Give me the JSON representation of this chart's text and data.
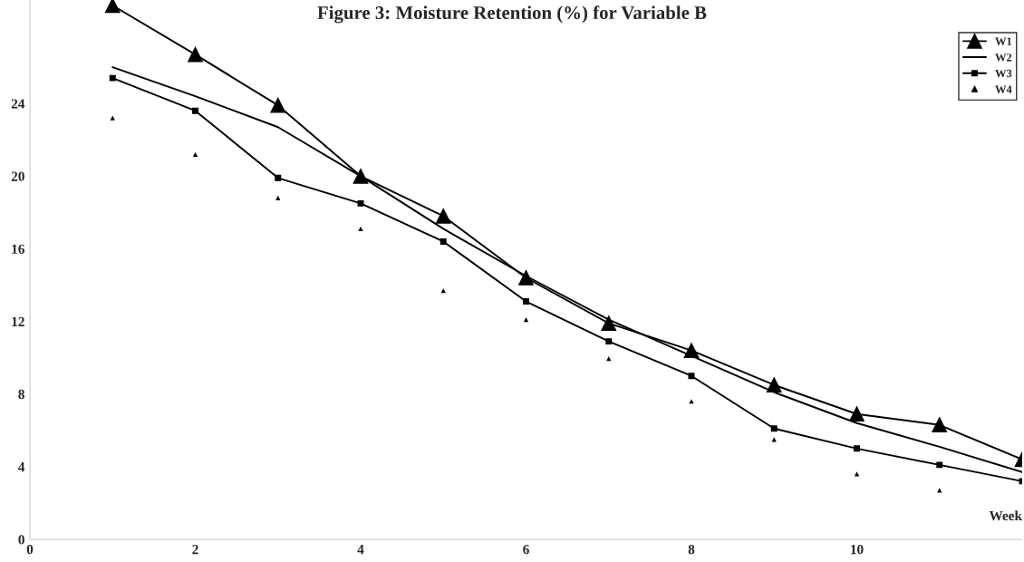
{
  "chart_data": {
    "type": "line",
    "title": "Figure 3: Moisture Retention (%) for Variable B",
    "xlabel": "Week",
    "x": [
      1,
      2,
      3,
      4,
      5,
      6,
      7,
      8,
      9,
      10,
      11,
      12
    ],
    "series": [
      {
        "name": "W1",
        "color": "#000000",
        "marker": "triangle",
        "line_style": "solid",
        "values": [
          29.4,
          26.7,
          23.9,
          20.0,
          17.8,
          14.4,
          11.9,
          10.4,
          8.5,
          6.9,
          6.3,
          4.4
        ]
      },
      {
        "name": "W2",
        "color": "#000000",
        "marker": "none",
        "line_style": "solid",
        "values": [
          26.0,
          24.4,
          22.7,
          20.0,
          17.1,
          14.5,
          12.1,
          10.1,
          8.1,
          6.4,
          5.1,
          3.7
        ]
      },
      {
        "name": "W3",
        "color": "#000000",
        "marker": "square",
        "line_style": "solid",
        "values": [
          25.4,
          23.6,
          19.9,
          18.5,
          16.4,
          13.1,
          10.9,
          9.0,
          6.1,
          5.0,
          4.1,
          3.2
        ]
      },
      {
        "name": "W4",
        "color": "#000000",
        "type": "scatter",
        "marker": "triangle",
        "values": [
          23.2,
          21.2,
          18.8,
          17.1,
          13.7,
          12.1,
          9.95,
          7.6,
          5.5,
          3.6,
          2.7,
          null
        ]
      }
    ],
    "xlim": [
      0,
      12
    ],
    "xticks": [
      0,
      2,
      4,
      6,
      8,
      10
    ],
    "ylim": [
      0,
      29.7
    ],
    "yticks": [
      0,
      4,
      8,
      12,
      16,
      20,
      24
    ],
    "grid": false,
    "legend": "top right"
  }
}
